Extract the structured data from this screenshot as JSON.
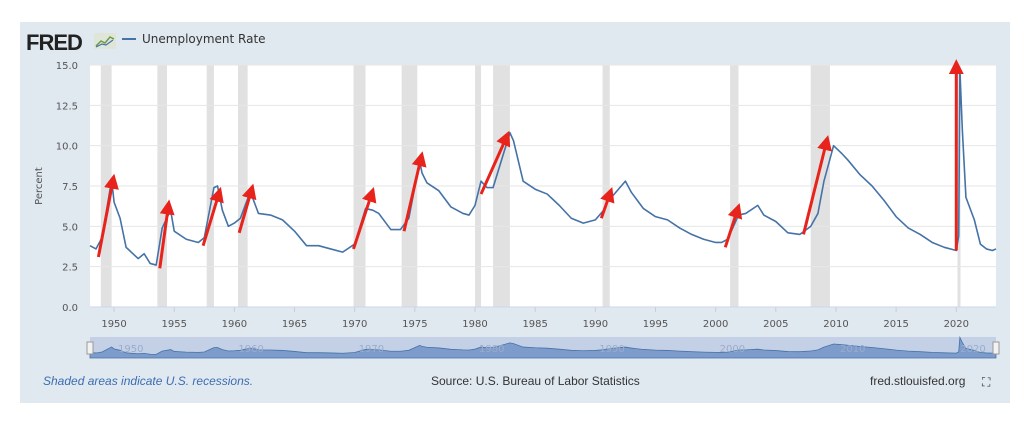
{
  "header": {
    "logo": "FRED",
    "legend": "Unemployment Rate"
  },
  "footer": {
    "note": "Shaded areas indicate U.S. recessions.",
    "source": "Source: U.S. Bureau of Labor Statistics",
    "site": "fred.stlouisfed.org"
  },
  "chart_data": {
    "type": "line",
    "title": "Unemployment Rate",
    "ylabel": "Percent",
    "xlabel": "",
    "xlim": [
      1948,
      2023.3
    ],
    "ylim": [
      0,
      15
    ],
    "yticks": [
      "0.0",
      "2.5",
      "5.0",
      "7.5",
      "10.0",
      "12.5",
      "15.0"
    ],
    "xticks": [
      "1950",
      "1955",
      "1960",
      "1965",
      "1970",
      "1975",
      "1980",
      "1985",
      "1990",
      "1995",
      "2000",
      "2005",
      "2010",
      "2015",
      "2020"
    ],
    "navigator_ticks": [
      "1950",
      "1960",
      "1970",
      "1980",
      "1990",
      "2000",
      "2010",
      "2020"
    ],
    "series_color": "#4572a7",
    "arrow_color": "#e8231b",
    "recessions": [
      [
        1948.9,
        1949.8
      ],
      [
        1953.6,
        1954.4
      ],
      [
        1957.7,
        1958.3
      ],
      [
        1960.3,
        1961.1
      ],
      [
        1969.9,
        1970.9
      ],
      [
        1973.9,
        1975.2
      ],
      [
        1980.0,
        1980.5
      ],
      [
        1981.5,
        1982.9
      ],
      [
        1990.6,
        1991.2
      ],
      [
        2001.2,
        2001.9
      ],
      [
        2007.9,
        2009.5
      ],
      [
        2020.1,
        2020.3
      ]
    ],
    "series": [
      {
        "name": "Unemployment Rate",
        "points": [
          [
            1948,
            3.8
          ],
          [
            1948.5,
            3.6
          ],
          [
            1949,
            4.3
          ],
          [
            1949.8,
            7.9
          ],
          [
            1950,
            6.5
          ],
          [
            1950.5,
            5.5
          ],
          [
            1951,
            3.7
          ],
          [
            1952,
            3.0
          ],
          [
            1952.5,
            3.3
          ],
          [
            1953,
            2.7
          ],
          [
            1953.5,
            2.6
          ],
          [
            1954,
            4.9
          ],
          [
            1954.7,
            6.0
          ],
          [
            1955,
            4.7
          ],
          [
            1956,
            4.2
          ],
          [
            1957,
            4.0
          ],
          [
            1957.5,
            4.3
          ],
          [
            1958.3,
            7.4
          ],
          [
            1958.6,
            7.5
          ],
          [
            1959,
            6.0
          ],
          [
            1959.5,
            5.0
          ],
          [
            1960,
            5.2
          ],
          [
            1960.5,
            5.5
          ],
          [
            1961.3,
            7.1
          ],
          [
            1961.5,
            6.8
          ],
          [
            1962,
            5.8
          ],
          [
            1963,
            5.7
          ],
          [
            1964,
            5.4
          ],
          [
            1965,
            4.7
          ],
          [
            1966,
            3.8
          ],
          [
            1967,
            3.8
          ],
          [
            1968,
            3.6
          ],
          [
            1969,
            3.4
          ],
          [
            1970,
            3.9
          ],
          [
            1970.9,
            6.1
          ],
          [
            1971.5,
            6.0
          ],
          [
            1972,
            5.8
          ],
          [
            1973,
            4.8
          ],
          [
            1973.8,
            4.8
          ],
          [
            1974.5,
            5.5
          ],
          [
            1975.4,
            9.0
          ],
          [
            1975.6,
            8.3
          ],
          [
            1976,
            7.7
          ],
          [
            1977,
            7.2
          ],
          [
            1978,
            6.2
          ],
          [
            1979,
            5.8
          ],
          [
            1979.5,
            5.7
          ],
          [
            1980,
            6.3
          ],
          [
            1980.5,
            7.8
          ],
          [
            1981,
            7.4
          ],
          [
            1981.5,
            7.4
          ],
          [
            1982.9,
            10.8
          ],
          [
            1983.2,
            10.3
          ],
          [
            1984,
            7.8
          ],
          [
            1985,
            7.3
          ],
          [
            1986,
            7.0
          ],
          [
            1987,
            6.3
          ],
          [
            1988,
            5.5
          ],
          [
            1989,
            5.2
          ],
          [
            1990,
            5.4
          ],
          [
            1990.7,
            6.0
          ],
          [
            1991,
            6.5
          ],
          [
            1992.5,
            7.8
          ],
          [
            1993,
            7.1
          ],
          [
            1994,
            6.1
          ],
          [
            1995,
            5.6
          ],
          [
            1996,
            5.4
          ],
          [
            1997,
            4.9
          ],
          [
            1998,
            4.5
          ],
          [
            1999,
            4.2
          ],
          [
            2000,
            4.0
          ],
          [
            2000.5,
            4.0
          ],
          [
            2001,
            4.2
          ],
          [
            2001.9,
            5.7
          ],
          [
            2002.5,
            5.8
          ],
          [
            2003.5,
            6.3
          ],
          [
            2004,
            5.7
          ],
          [
            2005,
            5.3
          ],
          [
            2006,
            4.6
          ],
          [
            2007,
            4.5
          ],
          [
            2007.9,
            5.0
          ],
          [
            2008.5,
            5.8
          ],
          [
            2009,
            7.8
          ],
          [
            2009.8,
            10.0
          ],
          [
            2010.5,
            9.5
          ],
          [
            2011,
            9.1
          ],
          [
            2012,
            8.2
          ],
          [
            2013,
            7.5
          ],
          [
            2014,
            6.6
          ],
          [
            2015,
            5.6
          ],
          [
            2016,
            4.9
          ],
          [
            2017,
            4.5
          ],
          [
            2018,
            4.0
          ],
          [
            2019,
            3.7
          ],
          [
            2020,
            3.5
          ],
          [
            2020.2,
            4.4
          ],
          [
            2020.3,
            14.7
          ],
          [
            2020.5,
            11.0
          ],
          [
            2020.8,
            6.8
          ],
          [
            2021,
            6.4
          ],
          [
            2021.5,
            5.4
          ],
          [
            2022,
            3.9
          ],
          [
            2022.5,
            3.6
          ],
          [
            2023,
            3.5
          ],
          [
            2023.3,
            3.6
          ]
        ]
      }
    ],
    "annotations": [
      [
        [
          1948.7,
          3.1
        ],
        [
          1949.9,
          7.8
        ]
      ],
      [
        [
          1953.8,
          2.4
        ],
        [
          1954.5,
          6.2
        ]
      ],
      [
        [
          1957.4,
          3.8
        ],
        [
          1958.7,
          7.0
        ]
      ],
      [
        [
          1960.4,
          4.6
        ],
        [
          1961.4,
          7.2
        ]
      ],
      [
        [
          1969.9,
          3.6
        ],
        [
          1971.4,
          7.0
        ]
      ],
      [
        [
          1974.1,
          4.7
        ],
        [
          1975.5,
          9.2
        ]
      ],
      [
        [
          1980.5,
          7.0
        ],
        [
          1982.6,
          10.5
        ]
      ],
      [
        [
          1990.5,
          5.5
        ],
        [
          1991.2,
          7.0
        ]
      ],
      [
        [
          2000.8,
          3.7
        ],
        [
          2001.8,
          6.0
        ]
      ],
      [
        [
          2007.3,
          4.5
        ],
        [
          2009.2,
          10.2
        ]
      ],
      [
        [
          2020.0,
          3.5
        ],
        [
          2020.0,
          14.9
        ]
      ]
    ]
  }
}
